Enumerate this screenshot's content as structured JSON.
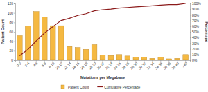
{
  "chart_data": {
    "type": "bar",
    "x_label": "Mutations per Megabase",
    "y_label": "Patient Count",
    "y2_label": "Percentage",
    "categories": [
      "0-2",
      "2-4",
      "4-6",
      "6-8",
      "8-10",
      "10-12",
      "12-14",
      "14-16",
      "16-18",
      "18-20",
      "20-22",
      "22-24",
      "24-26",
      "26-28",
      "28-30",
      "30-32",
      "32-34",
      "34-36",
      "36-38",
      "38-40",
      ">40"
    ],
    "series": [
      {
        "name": "Patient Count",
        "type": "bar",
        "color": "#f5b942",
        "values": [
          52,
          72,
          103,
          91,
          73,
          73,
          29,
          27,
          23,
          33,
          11,
          10,
          12,
          9,
          7,
          7,
          4,
          7,
          3,
          4,
          12
        ]
      },
      {
        "name": "Cumulative Percentage",
        "type": "line",
        "color": "#8b1a1a",
        "axis": "y2",
        "values": [
          8,
          19,
          34,
          48,
          59,
          70,
          74,
          79,
          82,
          87,
          89,
          90,
          92,
          93,
          94,
          95,
          96,
          97,
          98,
          98,
          100
        ]
      }
    ],
    "ylim": [
      0,
      120
    ],
    "yticks": [
      0,
      20,
      40,
      60,
      80,
      100,
      120
    ],
    "y2lim": [
      0,
      100
    ],
    "y2ticks": [
      {
        "value": 0,
        "label": "0%"
      },
      {
        "value": 10,
        "label": "10%"
      },
      {
        "value": 20,
        "label": "20%"
      },
      {
        "value": 30,
        "label": "30%"
      },
      {
        "value": 40,
        "label": "40%"
      },
      {
        "value": 50,
        "label": "50%"
      },
      {
        "value": 60,
        "label": "60%"
      },
      {
        "value": 70,
        "label": "70%"
      },
      {
        "value": 80,
        "label": "80%"
      },
      {
        "value": 90,
        "label": "90%"
      },
      {
        "value": 100,
        "label": "100%"
      }
    ],
    "grid": false,
    "legend": "bottom"
  }
}
